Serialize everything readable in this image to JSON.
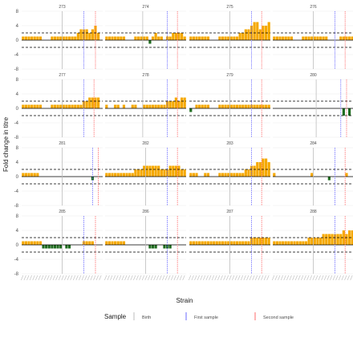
{
  "chart_data": {
    "type": "bar",
    "xlabel": "Strain",
    "ylabel": "Fold change in titre",
    "ylim": [
      -8,
      8
    ],
    "yticks": [
      -8,
      -4,
      0,
      4,
      8
    ],
    "hlines": [
      2,
      -2
    ],
    "n_strains": 28,
    "legend": {
      "title": "Sample",
      "position": "bottom",
      "entries": [
        {
          "label": "Birth",
          "color": "#bdbdbd"
        },
        {
          "label": "First sample",
          "color": "#6b6bff"
        },
        {
          "label": "Second sample",
          "color": "#ff6b6b"
        }
      ]
    },
    "colors": {
      "positive": "#f5a800",
      "negative": "#1e6b1e"
    },
    "panels": [
      {
        "id": "273",
        "values": [
          1,
          1,
          1,
          1,
          1,
          1,
          1,
          0,
          0,
          0,
          1,
          1,
          1,
          1,
          1,
          1,
          1,
          1,
          1,
          2,
          3,
          3,
          3,
          2,
          3,
          4,
          2,
          0
        ],
        "birth": 14,
        "first": 21.5,
        "second": 25.5
      },
      {
        "id": "274",
        "values": [
          1,
          1,
          1,
          1,
          1,
          1,
          1,
          0,
          0,
          0,
          1,
          1,
          1,
          1,
          1,
          -1,
          1,
          2,
          1,
          1,
          0,
          1,
          1,
          2,
          2,
          2,
          2,
          1
        ],
        "birth": 13,
        "first": 21.5,
        "second": 25
      },
      {
        "id": "275",
        "values": [
          1,
          1,
          1,
          1,
          1,
          1,
          1,
          0,
          0,
          0,
          1,
          1,
          1,
          1,
          1,
          1,
          1,
          2,
          2,
          3,
          3,
          4,
          5,
          5,
          3,
          4,
          4,
          5
        ],
        "birth": 14,
        "first": 21.5,
        "second": 25
      },
      {
        "id": "276",
        "values": [
          1,
          1,
          1,
          1,
          1,
          1,
          1,
          0,
          0,
          0,
          1,
          1,
          1,
          1,
          1,
          1,
          1,
          1,
          1,
          0,
          0,
          0,
          0,
          1,
          1,
          1,
          1,
          1
        ],
        "birth": 14,
        "first": 21.5,
        "second": 25
      },
      {
        "id": "277",
        "values": [
          1,
          1,
          1,
          1,
          1,
          1,
          1,
          0,
          0,
          0,
          1,
          1,
          1,
          1,
          1,
          1,
          1,
          1,
          1,
          1,
          1,
          2,
          2,
          3,
          3,
          3,
          3,
          0
        ],
        "birth": 14,
        "first": 21.5,
        "second": 25
      },
      {
        "id": "278",
        "values": [
          1,
          0,
          0,
          1,
          1,
          0,
          1,
          0,
          0,
          1,
          1,
          0,
          0,
          1,
          1,
          1,
          1,
          1,
          1,
          1,
          1,
          2,
          2,
          2,
          3,
          2,
          3,
          3
        ],
        "birth": 13,
        "first": 21.5,
        "second": 25
      },
      {
        "id": "279",
        "values": [
          -1,
          0,
          1,
          1,
          1,
          1,
          1,
          0,
          0,
          0,
          1,
          1,
          1,
          1,
          1,
          1,
          1,
          1,
          1,
          1,
          1,
          1,
          1,
          1,
          1,
          1,
          1,
          1
        ],
        "birth": 14,
        "first": 21.5,
        "second": 25
      },
      {
        "id": "280",
        "values": [
          0,
          0,
          0,
          0,
          0,
          0,
          0,
          0,
          0,
          0,
          0,
          0,
          0,
          0,
          0,
          0,
          0,
          0,
          0,
          0,
          0,
          0,
          0,
          0,
          -2,
          0,
          -2,
          0
        ],
        "birth": 15,
        "first": 23.5,
        "second": 25.5
      },
      {
        "id": "281",
        "values": [
          1,
          1,
          1,
          1,
          1,
          1,
          0,
          0,
          0,
          0,
          0,
          0,
          0,
          0,
          0,
          0,
          0,
          0,
          0,
          0,
          0,
          0,
          0,
          0,
          -1,
          0,
          0,
          0
        ],
        "birth": 14,
        "first": 24.5,
        "second": 26.5
      },
      {
        "id": "282",
        "values": [
          1,
          1,
          1,
          1,
          1,
          1,
          1,
          1,
          1,
          1,
          2,
          2,
          2,
          3,
          3,
          3,
          3,
          3,
          3,
          2,
          2,
          2,
          3,
          3,
          3,
          3,
          2,
          2
        ],
        "birth": 14,
        "first": 21.5,
        "second": 25
      },
      {
        "id": "283",
        "values": [
          1,
          1,
          1,
          0,
          0,
          1,
          1,
          0,
          0,
          0,
          1,
          1,
          1,
          1,
          1,
          1,
          1,
          1,
          1,
          2,
          2,
          3,
          3,
          4,
          4,
          5,
          5,
          4
        ],
        "birth": 14,
        "first": 21.5,
        "second": 25
      },
      {
        "id": "284",
        "values": [
          1,
          0,
          0,
          0,
          0,
          0,
          0,
          0,
          0,
          0,
          0,
          0,
          0,
          1,
          0,
          0,
          0,
          0,
          0,
          -1,
          0,
          0,
          0,
          0,
          0,
          1,
          0,
          0
        ],
        "birth": 14,
        "first": 21.5,
        "second": 25
      },
      {
        "id": "285",
        "values": [
          1,
          1,
          1,
          1,
          1,
          1,
          1,
          -1,
          -1,
          -1,
          -1,
          -1,
          -1,
          -1,
          0,
          -1,
          -1,
          0,
          0,
          0,
          0,
          1,
          1,
          1,
          1,
          0,
          0,
          0
        ],
        "birth": 14,
        "first": 21.5,
        "second": 25.5
      },
      {
        "id": "286",
        "values": [
          1,
          1,
          1,
          1,
          1,
          1,
          1,
          0,
          0,
          0,
          0,
          0,
          0,
          0,
          0,
          -1,
          -1,
          -1,
          0,
          0,
          -1,
          -1,
          -1,
          0,
          0,
          0,
          0,
          0
        ],
        "birth": 14,
        "first": 21.5,
        "second": 25
      },
      {
        "id": "287",
        "values": [
          1,
          1,
          1,
          1,
          1,
          1,
          1,
          1,
          1,
          1,
          1,
          1,
          1,
          1,
          1,
          1,
          1,
          1,
          1,
          1,
          1,
          2,
          2,
          2,
          2,
          2,
          2,
          2
        ],
        "birth": 14,
        "first": 21.5,
        "second": 25
      },
      {
        "id": "288",
        "values": [
          1,
          1,
          1,
          1,
          1,
          1,
          1,
          1,
          1,
          1,
          1,
          1,
          2,
          2,
          2,
          2,
          2,
          3,
          3,
          3,
          3,
          3,
          3,
          3,
          4,
          3,
          4,
          4
        ],
        "birth": 14,
        "first": 21.5,
        "second": 25
      }
    ]
  }
}
